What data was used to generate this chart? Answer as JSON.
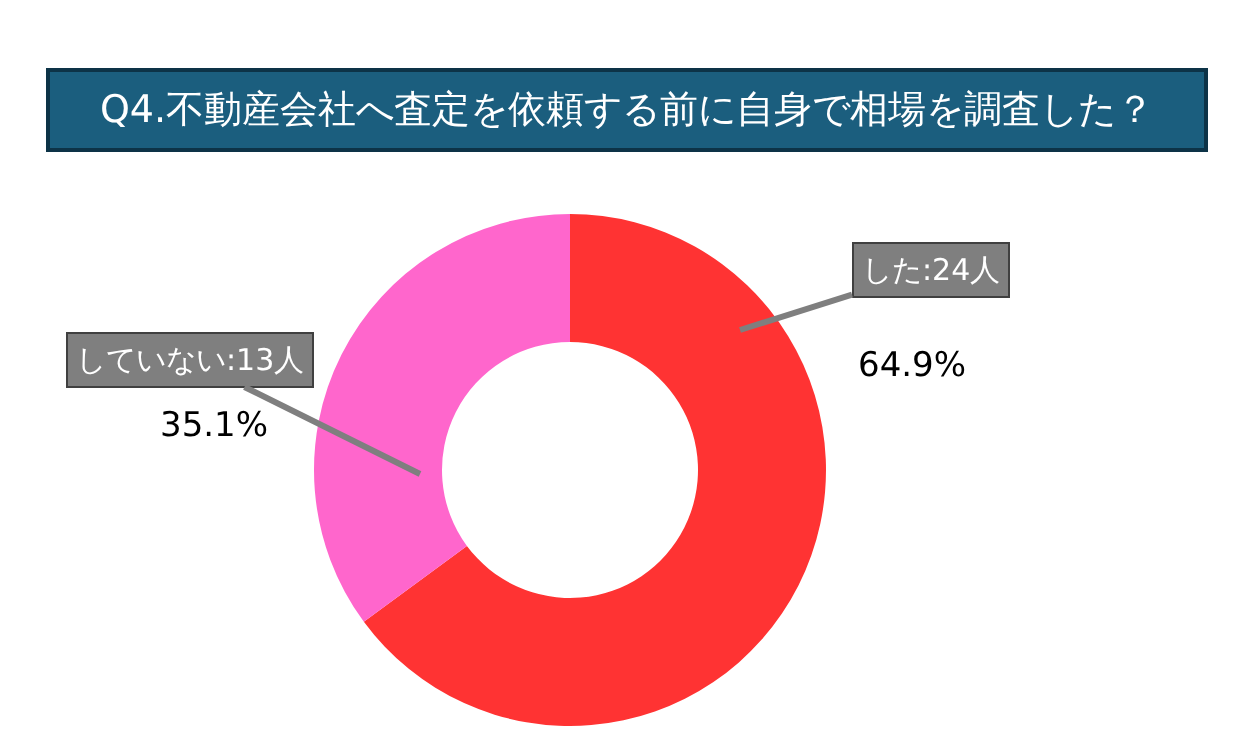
{
  "chart_data": {
    "type": "donut",
    "title": "Q4.不動産会社へ査定を依頼する前に自身で相場を調査した？",
    "categories": [
      "した:24人",
      "していない:13人"
    ],
    "values": [
      64.9,
      35.1
    ],
    "colors": [
      "#ff3333",
      "#ff66cc"
    ],
    "value_labels": [
      "64.9%",
      "35.1%"
    ],
    "legend": false
  }
}
